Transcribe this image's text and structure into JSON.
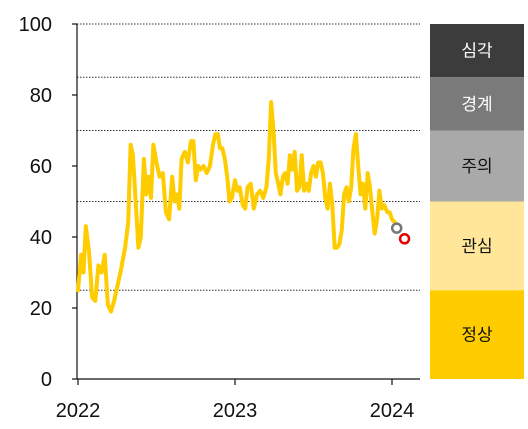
{
  "chart_data": {
    "type": "line",
    "title": "",
    "xlabel": "",
    "ylabel": "",
    "ylim": [
      0,
      100
    ],
    "yticks": [
      0,
      20,
      40,
      60,
      80,
      100
    ],
    "xticks": [
      {
        "label": "2022",
        "year": 2022.0
      },
      {
        "label": "2023",
        "year": 2023.0
      },
      {
        "label": "2024",
        "year": 2024.0
      }
    ],
    "grid": "dotted horizontal",
    "line_color": "#FFCC00",
    "series": [
      {
        "values": [
          [
            2022.0,
            25
          ],
          [
            2022.02,
            35
          ],
          [
            2022.035,
            30
          ],
          [
            2022.05,
            43
          ],
          [
            2022.07,
            36
          ],
          [
            2022.09,
            23
          ],
          [
            2022.11,
            22
          ],
          [
            2022.13,
            32
          ],
          [
            2022.15,
            30
          ],
          [
            2022.17,
            35
          ],
          [
            2022.19,
            21
          ],
          [
            2022.21,
            19
          ],
          [
            2022.23,
            22
          ],
          [
            2022.27,
            30
          ],
          [
            2022.3,
            37
          ],
          [
            2022.32,
            44
          ],
          [
            2022.335,
            66
          ],
          [
            2022.35,
            63
          ],
          [
            2022.37,
            48
          ],
          [
            2022.385,
            37
          ],
          [
            2022.4,
            40
          ],
          [
            2022.42,
            62
          ],
          [
            2022.435,
            52
          ],
          [
            2022.45,
            57
          ],
          [
            2022.465,
            51
          ],
          [
            2022.48,
            66
          ],
          [
            2022.5,
            61
          ],
          [
            2022.52,
            57
          ],
          [
            2022.54,
            58
          ],
          [
            2022.56,
            47
          ],
          [
            2022.58,
            45
          ],
          [
            2022.6,
            57
          ],
          [
            2022.615,
            50
          ],
          [
            2022.63,
            52
          ],
          [
            2022.645,
            48
          ],
          [
            2022.66,
            62
          ],
          [
            2022.68,
            64
          ],
          [
            2022.7,
            61
          ],
          [
            2022.72,
            67
          ],
          [
            2022.735,
            67
          ],
          [
            2022.75,
            56
          ],
          [
            2022.765,
            60
          ],
          [
            2022.78,
            59
          ],
          [
            2022.8,
            60
          ],
          [
            2022.82,
            58
          ],
          [
            2022.84,
            60
          ],
          [
            2022.86,
            66
          ],
          [
            2022.875,
            69
          ],
          [
            2022.89,
            69
          ],
          [
            2022.905,
            65
          ],
          [
            2022.92,
            65
          ],
          [
            2022.935,
            62
          ],
          [
            2022.95,
            57
          ],
          [
            2022.965,
            50
          ],
          [
            2022.98,
            51
          ],
          [
            2023.0,
            56
          ],
          [
            2023.015,
            53
          ],
          [
            2023.03,
            54
          ],
          [
            2023.05,
            49
          ],
          [
            2023.065,
            48
          ],
          [
            2023.08,
            54
          ],
          [
            2023.1,
            55
          ],
          [
            2023.12,
            48
          ],
          [
            2023.14,
            52
          ],
          [
            2023.16,
            53
          ],
          [
            2023.18,
            51
          ],
          [
            2023.2,
            54
          ],
          [
            2023.215,
            62
          ],
          [
            2023.23,
            78
          ],
          [
            2023.245,
            70
          ],
          [
            2023.26,
            58
          ],
          [
            2023.275,
            55
          ],
          [
            2023.29,
            52
          ],
          [
            2023.305,
            57
          ],
          [
            2023.32,
            58
          ],
          [
            2023.335,
            55
          ],
          [
            2023.35,
            63
          ],
          [
            2023.365,
            59
          ],
          [
            2023.38,
            64
          ],
          [
            2023.395,
            53
          ],
          [
            2023.41,
            54
          ],
          [
            2023.425,
            63
          ],
          [
            2023.44,
            53
          ],
          [
            2023.455,
            55
          ],
          [
            2023.47,
            53
          ],
          [
            2023.485,
            58
          ],
          [
            2023.5,
            60
          ],
          [
            2023.515,
            57
          ],
          [
            2023.53,
            61
          ],
          [
            2023.545,
            61
          ],
          [
            2023.56,
            58
          ],
          [
            2023.575,
            51
          ],
          [
            2023.59,
            48
          ],
          [
            2023.605,
            55
          ],
          [
            2023.62,
            49
          ],
          [
            2023.635,
            37
          ],
          [
            2023.65,
            37
          ],
          [
            2023.665,
            38
          ],
          [
            2023.68,
            42
          ],
          [
            2023.695,
            52
          ],
          [
            2023.71,
            54
          ],
          [
            2023.725,
            50
          ],
          [
            2023.74,
            54
          ],
          [
            2023.755,
            65
          ],
          [
            2023.77,
            69
          ],
          [
            2023.785,
            60
          ],
          [
            2023.8,
            52
          ],
          [
            2023.815,
            55
          ],
          [
            2023.83,
            48
          ],
          [
            2023.845,
            58
          ],
          [
            2023.86,
            54
          ],
          [
            2023.875,
            47
          ],
          [
            2023.89,
            41
          ],
          [
            2023.905,
            45
          ],
          [
            2023.92,
            53
          ],
          [
            2023.935,
            48
          ],
          [
            2023.95,
            49
          ],
          [
            2023.97,
            47
          ],
          [
            2023.985,
            47
          ],
          [
            2024.0,
            45
          ],
          [
            2024.02,
            44
          ],
          [
            2024.03,
            42.5
          ]
        ]
      }
    ],
    "markers": [
      {
        "year": 2024.03,
        "value": 42.5,
        "color": "#777777",
        "label": "gray-marker"
      },
      {
        "year": 2024.08,
        "value": 39.5,
        "color": "#E60000",
        "label": "red-marker"
      }
    ],
    "zones": [
      {
        "label": "심각",
        "from": 85,
        "to": 100,
        "fill": "#3C3C3C",
        "text_color": "#FFFFFF"
      },
      {
        "label": "경계",
        "from": 70,
        "to": 85,
        "fill": "#7A7A7A",
        "text_color": "#FFFFFF"
      },
      {
        "label": "주의",
        "from": 50,
        "to": 70,
        "fill": "#A9A9A9",
        "text_color": "#111111"
      },
      {
        "label": "관심",
        "from": 25,
        "to": 50,
        "fill": "#FFE699",
        "text_color": "#111111"
      },
      {
        "label": "정상",
        "from": 0,
        "to": 25,
        "fill": "#FFCC00",
        "text_color": "#111111"
      }
    ],
    "zone_grid_values": [
      85,
      70,
      50,
      25
    ]
  }
}
